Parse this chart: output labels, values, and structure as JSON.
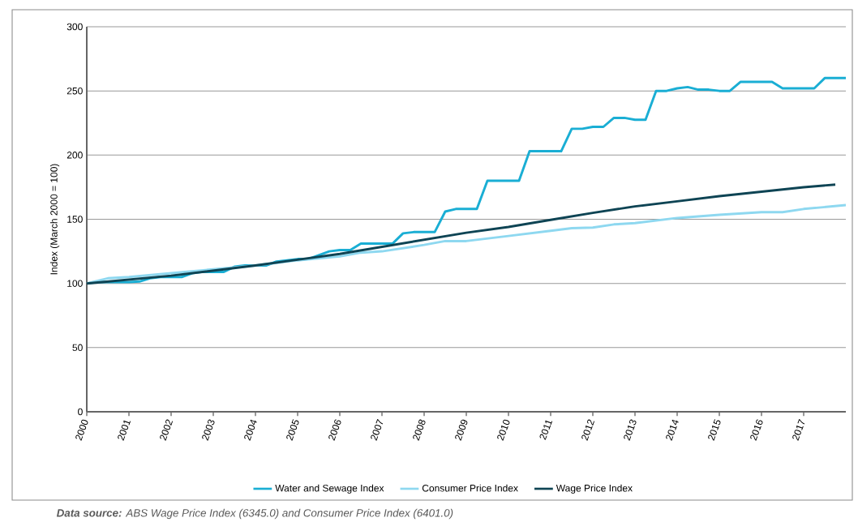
{
  "chart_data": {
    "type": "line",
    "ylabel": "Index (March 2000 = 100)",
    "xlim": [
      2000,
      2018
    ],
    "xticks": [
      2000,
      2001,
      2002,
      2003,
      2004,
      2005,
      2006,
      2007,
      2008,
      2009,
      2010,
      2011,
      2012,
      2013,
      2014,
      2015,
      2016,
      2017
    ],
    "ylim": [
      0,
      300
    ],
    "yticks": [
      0,
      50,
      100,
      150,
      200,
      250,
      300
    ],
    "grid": "y",
    "legend": "bottom",
    "marker": "none",
    "line_style": "solid",
    "annotations": [
      "**Data source:** ABS Wage Price Index (6345.0) and Consumer Price Index (6401.0)"
    ],
    "series": [
      {
        "name": "Water and Sewage Index",
        "color": "#1aaed4",
        "x": [
          2000,
          2000.25,
          2000.5,
          2000.75,
          2001,
          2001.25,
          2001.5,
          2001.75,
          2002,
          2002.25,
          2002.5,
          2002.75,
          2003,
          2003.25,
          2003.5,
          2003.75,
          2004,
          2004.25,
          2004.5,
          2004.75,
          2005,
          2005.25,
          2005.5,
          2005.75,
          2006,
          2006.25,
          2006.5,
          2006.75,
          2007,
          2007.25,
          2007.5,
          2007.75,
          2008,
          2008.25,
          2008.5,
          2008.75,
          2009,
          2009.25,
          2009.5,
          2009.75,
          2010,
          2010.25,
          2010.5,
          2010.75,
          2011,
          2011.25,
          2011.5,
          2011.75,
          2012,
          2012.25,
          2012.5,
          2012.75,
          2013,
          2013.25,
          2013.5,
          2013.75,
          2014,
          2014.25,
          2014.5,
          2014.75,
          2015,
          2015.25,
          2015.5,
          2015.75,
          2016,
          2016.25,
          2016.5,
          2016.75,
          2017,
          2017.25,
          2017.5,
          2017.75,
          2018
        ],
        "values": [
          100,
          101,
          101,
          101,
          101,
          101.5,
          104,
          105,
          105,
          105,
          108,
          109,
          109,
          109,
          113,
          114,
          114,
          114,
          117,
          118,
          119,
          119,
          122,
          125,
          126,
          126,
          131,
          131,
          131,
          131,
          139,
          140,
          140,
          140,
          156,
          158,
          158,
          158,
          180,
          180,
          180,
          180,
          203,
          203,
          203,
          203,
          220.5,
          220.5,
          222,
          222,
          229,
          229,
          227.5,
          227.5,
          250,
          250,
          252,
          253,
          251,
          251,
          250,
          250,
          257,
          257,
          257,
          257,
          252,
          252,
          252,
          252,
          260,
          260,
          260
        ]
      },
      {
        "name": "Consumer Price Index",
        "color": "#8ed8f0",
        "x": [
          2000,
          2000.5,
          2001,
          2002,
          2003,
          2004,
          2005,
          2006,
          2006.5,
          2007,
          2008,
          2008.5,
          2009,
          2010,
          2011,
          2011.5,
          2012,
          2012.5,
          2013,
          2014,
          2015,
          2016,
          2016.5,
          2017,
          2018
        ],
        "values": [
          100,
          104,
          105,
          108,
          111,
          114,
          118,
          121,
          124,
          125,
          130,
          133,
          133,
          137,
          141,
          143,
          143.5,
          146,
          147,
          151,
          153.5,
          155.5,
          155.5,
          158,
          161
        ]
      },
      {
        "name": "Wage Price Index",
        "color": "#0e4454",
        "x": [
          2000,
          2001,
          2002,
          2003,
          2004,
          2005,
          2006,
          2007,
          2008,
          2009,
          2010,
          2011,
          2012,
          2013,
          2014,
          2015,
          2016,
          2017,
          2017.75
        ],
        "values": [
          100,
          103,
          106,
          110,
          114,
          118.5,
          123,
          128.5,
          134,
          139.5,
          144,
          149.5,
          155,
          160,
          164,
          168,
          171.5,
          175,
          177
        ]
      }
    ]
  }
}
